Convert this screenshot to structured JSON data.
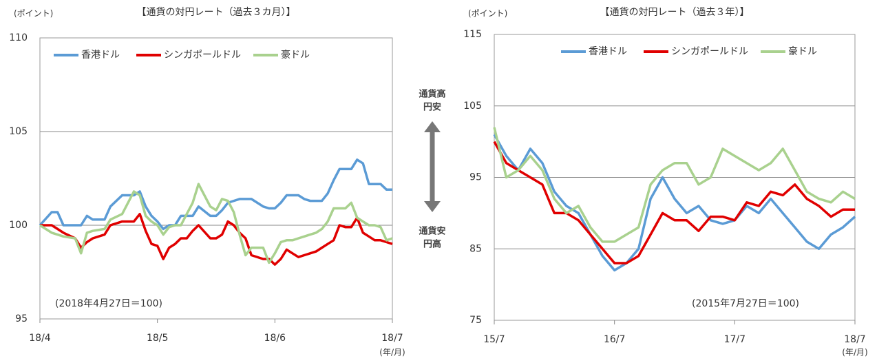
{
  "chart_data": [
    {
      "type": "line",
      "title": "【通貨の対円レート（過去３カ月）】",
      "y_unit": "(ポイント)",
      "x_unit": "(年/月)",
      "note": "(2018年4月27日＝100)",
      "x": [
        0,
        0.1,
        0.15,
        0.2,
        0.3,
        0.35,
        0.4,
        0.45,
        0.55,
        0.6,
        0.7,
        0.8,
        0.85,
        0.9,
        0.95,
        1.0,
        1.05,
        1.1,
        1.15,
        1.2,
        1.25,
        1.3,
        1.35,
        1.45,
        1.5,
        1.55,
        1.6,
        1.65,
        1.7,
        1.75,
        1.8,
        1.9,
        1.95,
        2.0,
        2.05,
        2.1,
        2.15,
        2.2,
        2.25,
        2.3,
        2.35,
        2.4,
        2.45,
        2.5,
        2.55,
        2.6,
        2.65,
        2.7,
        2.75,
        2.8,
        2.85,
        2.9,
        2.95,
        3.0
      ],
      "series": [
        {
          "name": "香港ドル",
          "color": "#5b9bd5",
          "values": [
            100,
            100.7,
            100.7,
            100,
            100,
            100,
            100.5,
            100.3,
            100.3,
            101,
            101.6,
            101.6,
            101.8,
            101,
            100.5,
            100.2,
            99.8,
            100,
            100,
            100.5,
            100.5,
            100.5,
            101,
            100.5,
            100.5,
            100.8,
            101.2,
            101.3,
            101.4,
            101.4,
            101.4,
            101,
            100.9,
            100.9,
            101.2,
            101.6,
            101.6,
            101.6,
            101.4,
            101.3,
            101.3,
            101.3,
            101.7,
            102.4,
            103,
            103,
            103,
            103.5,
            103.3,
            102.2,
            102.2,
            102.2,
            101.9,
            101.9
          ]
        },
        {
          "name": "シンガポールドル",
          "color": "#e00000",
          "values": [
            100,
            100,
            99.8,
            99.6,
            99.3,
            98.8,
            99.1,
            99.3,
            99.5,
            100,
            100.2,
            100.2,
            100.6,
            99.7,
            99,
            98.9,
            98.2,
            98.8,
            99,
            99.3,
            99.3,
            99.7,
            100,
            99.3,
            99.3,
            99.5,
            100.2,
            100,
            99.6,
            99.3,
            98.4,
            98.2,
            98.2,
            97.9,
            98.2,
            98.7,
            98.5,
            98.3,
            98.4,
            98.5,
            98.6,
            98.8,
            99,
            99.2,
            100,
            99.9,
            99.9,
            100.4,
            99.6,
            99.4,
            99.2,
            99.2,
            99.1,
            99
          ]
        },
        {
          "name": "豪ドル",
          "color": "#a9d18e",
          "values": [
            100,
            99.6,
            99.5,
            99.4,
            99.3,
            98.5,
            99.6,
            99.7,
            99.8,
            100.3,
            100.6,
            101.8,
            101.6,
            100.5,
            100.2,
            100,
            99.5,
            99.9,
            100,
            100,
            100.6,
            101.2,
            102.2,
            101,
            100.8,
            101.4,
            101.3,
            100.7,
            99.5,
            98.4,
            98.8,
            98.8,
            98,
            98.5,
            99.1,
            99.2,
            99.2,
            99.3,
            99.4,
            99.5,
            99.6,
            99.8,
            100.2,
            100.9,
            100.9,
            100.9,
            101.2,
            100.4,
            100.2,
            100,
            100,
            99.9,
            99.2,
            99.3
          ]
        }
      ],
      "xlim": [
        0,
        3
      ],
      "xticks": [
        {
          "value": 0,
          "label": "18/4"
        },
        {
          "value": 1,
          "label": "18/5"
        },
        {
          "value": 2,
          "label": "18/6"
        },
        {
          "value": 3,
          "label": "18/7"
        }
      ],
      "ylim": [
        95,
        110
      ],
      "yticks": [
        95,
        100,
        105,
        110
      ],
      "grid": true,
      "legend": "top"
    },
    {
      "type": "line",
      "title": "【通貨の対円レート（過去３年）】",
      "y_unit": "(ポイント)",
      "x_unit": "(年/月)",
      "note": "(2015年7月27日＝100)",
      "x": [
        0,
        0.1,
        0.2,
        0.3,
        0.4,
        0.5,
        0.6,
        0.7,
        0.8,
        0.9,
        1.0,
        1.1,
        1.2,
        1.3,
        1.4,
        1.5,
        1.6,
        1.7,
        1.8,
        1.9,
        2.0,
        2.1,
        2.2,
        2.3,
        2.4,
        2.5,
        2.6,
        2.7,
        2.8,
        2.9,
        3.0
      ],
      "series": [
        {
          "name": "香港ドル",
          "color": "#5b9bd5",
          "values": [
            101,
            98,
            96,
            99,
            97,
            93,
            91,
            90,
            87,
            84,
            82,
            83,
            85,
            92,
            95,
            92,
            90,
            91,
            89,
            88.5,
            89,
            91,
            90,
            92,
            90,
            88,
            86,
            85,
            87,
            88,
            89.5
          ]
        },
        {
          "name": "シンガポールドル",
          "color": "#e00000",
          "values": [
            100,
            97,
            96,
            95,
            94,
            90,
            90,
            89,
            87,
            85,
            83,
            83,
            84,
            87,
            90,
            89,
            89,
            87.5,
            89.5,
            89.5,
            89,
            91.5,
            91,
            93,
            92.5,
            94,
            92,
            91,
            89.5,
            90.5,
            90.5
          ]
        },
        {
          "name": "豪ドル",
          "color": "#a9d18e",
          "values": [
            102,
            95,
            96,
            98,
            96,
            92,
            90,
            91,
            88,
            86,
            86,
            87,
            88,
            94,
            96,
            97,
            97,
            94,
            95,
            99,
            98,
            97,
            96,
            97,
            99,
            96,
            93,
            92,
            91.5,
            93,
            92
          ]
        }
      ],
      "xlim": [
        0,
        3
      ],
      "xticks": [
        {
          "value": 0,
          "label": "15/7"
        },
        {
          "value": 1,
          "label": "16/7"
        },
        {
          "value": 2,
          "label": "17/7"
        },
        {
          "value": 3,
          "label": "18/7"
        }
      ],
      "ylim": [
        75,
        115
      ],
      "yticks": [
        75,
        85,
        95,
        105,
        115
      ],
      "grid": true,
      "legend": "top"
    }
  ],
  "middle": {
    "top": [
      "通貨高",
      "円安"
    ],
    "bottom": [
      "通貨安",
      "円高"
    ]
  }
}
